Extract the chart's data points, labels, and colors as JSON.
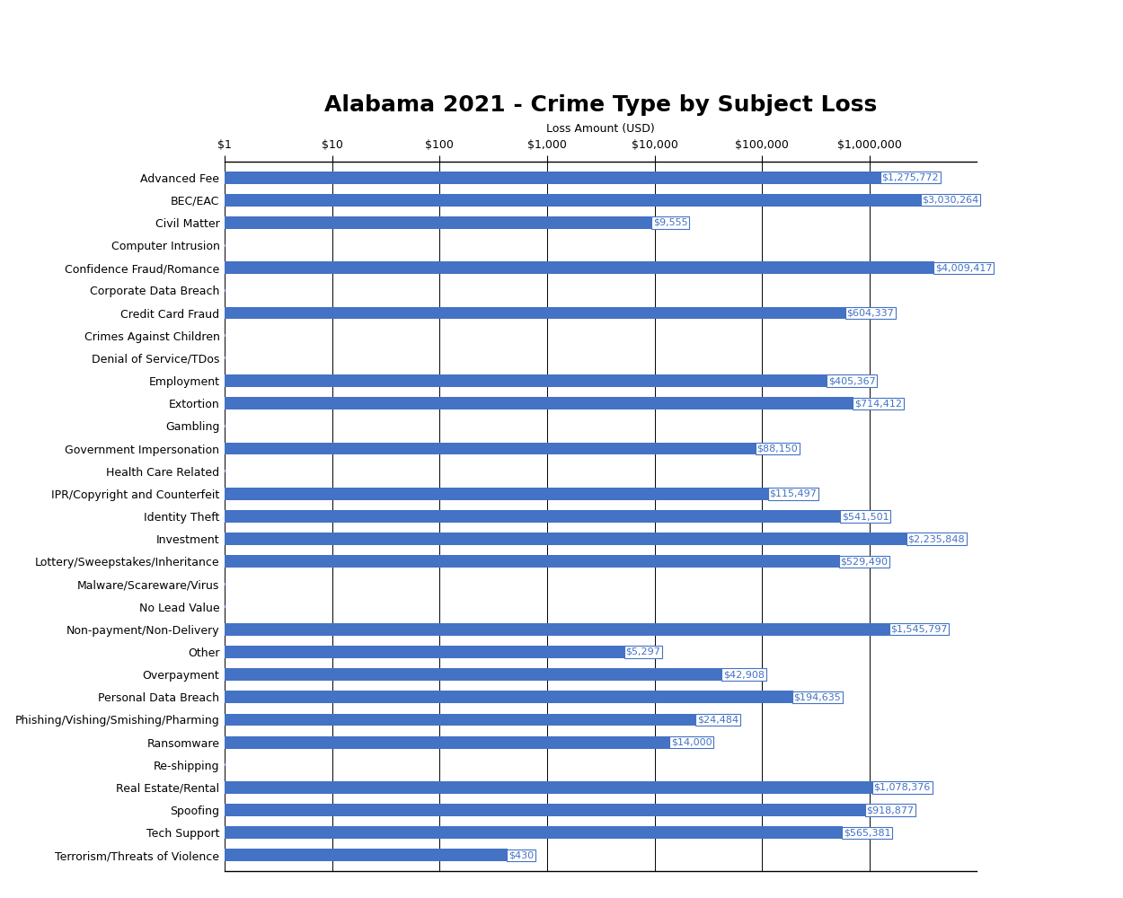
{
  "title": "Alabama 2021 - Crime Type by Subject Loss",
  "xlabel": "Loss Amount (USD)",
  "categories": [
    "Advanced Fee",
    "BEC/EAC",
    "Civil Matter",
    "Computer Intrusion",
    "Confidence Fraud/Romance",
    "Corporate Data Breach",
    "Credit Card Fraud",
    "Crimes Against Children",
    "Denial of Service/TDos",
    "Employment",
    "Extortion",
    "Gambling",
    "Government Impersonation",
    "Health Care Related",
    "IPR/Copyright and Counterfeit",
    "Identity Theft",
    "Investment",
    "Lottery/Sweepstakes/Inheritance",
    "Malware/Scareware/Virus",
    "No Lead Value",
    "Non-payment/Non-Delivery",
    "Other",
    "Overpayment",
    "Personal Data Breach",
    "Phishing/Vishing/Smishing/Pharming",
    "Ransomware",
    "Re-shipping",
    "Real Estate/Rental",
    "Spoofing",
    "Tech Support",
    "Terrorism/Threats of Violence"
  ],
  "values": [
    1275772,
    3030264,
    9555,
    0,
    4009417,
    0,
    604337,
    0,
    0,
    405367,
    714412,
    0,
    88150,
    0,
    115497,
    541501,
    2235848,
    529490,
    0,
    0,
    1545797,
    5297,
    42908,
    194635,
    24484,
    14000,
    0,
    1078376,
    918877,
    565381,
    430
  ],
  "labels": [
    "$1,275,772",
    "$3,030,264",
    "$9,555",
    "",
    "$4,009,417",
    "",
    "$604,337",
    "",
    "",
    "$405,367",
    "$714,412",
    "",
    "$88,150",
    "",
    "$115,497",
    "$541,501",
    "$2,235,848",
    "$529,490",
    "",
    "",
    "$1,545,797",
    "$5,297",
    "$42,908",
    "$194,635",
    "$24,484",
    "$14,000",
    "",
    "$1,078,376",
    "$918,877",
    "$565,381",
    "$430"
  ],
  "bar_color": "#4472C4",
  "label_color": "#4472C4",
  "title_fontsize": 18,
  "tick_fontsize": 9,
  "label_fontsize": 8,
  "xlabel_fontsize": 9,
  "bar_height": 0.55,
  "x_ticks": [
    1,
    10,
    100,
    1000,
    10000,
    100000,
    1000000
  ],
  "x_tick_labels": [
    "$1",
    "$10",
    "$100",
    "$1,000",
    "$10,000",
    "$100,000",
    "$1,000,000"
  ],
  "xlim_min": 1,
  "xlim_max": 10000000,
  "background_color": "#FFFFFF"
}
